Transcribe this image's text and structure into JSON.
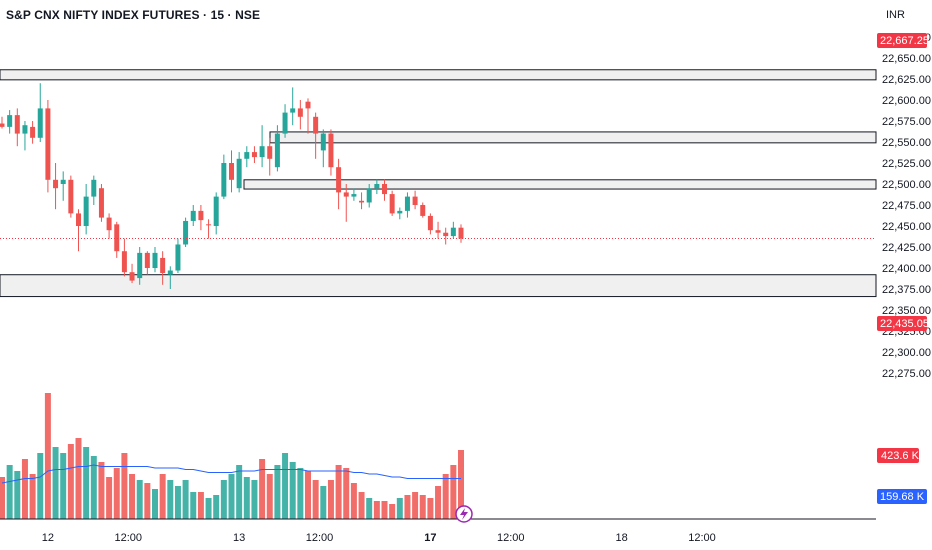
{
  "header": {
    "symbol_title": "S&P CNX NIFTY INDEX FUTURES · 15 · NSE",
    "currency": "INR"
  },
  "colors": {
    "up": "#26a69a",
    "down": "#ef5350",
    "vol_up": "#26a69a",
    "vol_down": "#ef5350",
    "ma_line": "#2962ff",
    "zone_fill": "#f0f0f0",
    "zone_border": "#131722",
    "grid": "#f0f3fa",
    "price_tag": "#f23645",
    "volume_ma_tag": "#2962ff"
  },
  "tags": {
    "top_price": "22,667.25",
    "last_price": "22,435.05",
    "volume_last": "423.6 K",
    "volume_ma": "159.68 K"
  },
  "chart_data": {
    "type": "candlestick",
    "interval": "15",
    "y_axis": {
      "ticks": [
        "22,675.00",
        "22,650.00",
        "22,625.00",
        "22,600.00",
        "22,575.00",
        "22,550.00",
        "22,525.00",
        "22,500.00",
        "22,475.00",
        "22,450.00",
        "22,425.00",
        "22,400.00",
        "22,375.00",
        "22,350.00",
        "22,325.00",
        "22,300.00",
        "22,275.00"
      ],
      "range": [
        22272,
        22680
      ]
    },
    "x_axis": {
      "labels": [
        "12",
        "12:00",
        "13",
        "12:00",
        "17",
        "12:00",
        "18",
        "12:00"
      ],
      "label_bar_index": [
        6,
        16.5,
        31,
        41.5,
        56,
        66.5,
        81,
        91.5
      ]
    },
    "candles": [
      [
        22572,
        22580,
        22566,
        22568
      ],
      [
        22568,
        22588,
        22560,
        22582
      ],
      [
        22582,
        22590,
        22545,
        22560
      ],
      [
        22560,
        22575,
        22540,
        22570
      ],
      [
        22568,
        22575,
        22548,
        22555
      ],
      [
        22555,
        22620,
        22550,
        22590
      ],
      [
        22590,
        22600,
        22490,
        22505
      ],
      [
        22505,
        22525,
        22470,
        22495
      ],
      [
        22500,
        22515,
        22480,
        22505
      ],
      [
        22505,
        22510,
        22460,
        22465
      ],
      [
        22465,
        22470,
        22420,
        22450
      ],
      [
        22450,
        22500,
        22440,
        22485
      ],
      [
        22485,
        22510,
        22475,
        22505
      ],
      [
        22495,
        22500,
        22455,
        22460
      ],
      [
        22460,
        22465,
        22435,
        22445
      ],
      [
        22452,
        22455,
        22412,
        22420
      ],
      [
        22420,
        22435,
        22390,
        22395
      ],
      [
        22395,
        22405,
        22382,
        22385
      ],
      [
        22388,
        22425,
        22380,
        22418
      ],
      [
        22418,
        22420,
        22392,
        22400
      ],
      [
        22400,
        22425,
        22395,
        22418
      ],
      [
        22412,
        22420,
        22380,
        22394
      ],
      [
        22392,
        22402,
        22375,
        22397
      ],
      [
        22397,
        22435,
        22394,
        22428
      ],
      [
        22428,
        22460,
        22425,
        22456
      ],
      [
        22456,
        22475,
        22450,
        22468
      ],
      [
        22468,
        22475,
        22445,
        22457
      ],
      [
        22452,
        22458,
        22435,
        22451
      ],
      [
        22450,
        22490,
        22440,
        22485
      ],
      [
        22485,
        22535,
        22482,
        22525
      ],
      [
        22525,
        22540,
        22490,
        22505
      ],
      [
        22495,
        22538,
        22490,
        22530
      ],
      [
        22530,
        22545,
        22520,
        22538
      ],
      [
        22538,
        22545,
        22525,
        22532
      ],
      [
        22532,
        22570,
        22520,
        22545
      ],
      [
        22545,
        22555,
        22510,
        22530
      ],
      [
        22520,
        22570,
        22515,
        22560
      ],
      [
        22560,
        22595,
        22555,
        22585
      ],
      [
        22585,
        22615,
        22570,
        22590
      ],
      [
        22590,
        22600,
        22565,
        22580
      ],
      [
        22598,
        22602,
        22560,
        22590
      ],
      [
        22580,
        22585,
        22530,
        22560
      ],
      [
        22540,
        22565,
        22520,
        22560
      ],
      [
        22560,
        22565,
        22510,
        22520
      ],
      [
        22520,
        22530,
        22470,
        22490
      ],
      [
        22490,
        22500,
        22455,
        22485
      ],
      [
        22485,
        22495,
        22480,
        22488
      ],
      [
        22480,
        22490,
        22470,
        22478
      ],
      [
        22478,
        22500,
        22472,
        22495
      ],
      [
        22495,
        22505,
        22488,
        22500
      ],
      [
        22500,
        22505,
        22480,
        22488
      ],
      [
        22488,
        22492,
        22462,
        22465
      ],
      [
        22465,
        22472,
        22458,
        22468
      ],
      [
        22468,
        22490,
        22460,
        22485
      ],
      [
        22485,
        22492,
        22470,
        22475
      ],
      [
        22475,
        22478,
        22460,
        22462
      ],
      [
        22462,
        22465,
        22440,
        22445
      ],
      [
        22445,
        22455,
        22435,
        22442
      ],
      [
        22442,
        22448,
        22428,
        22438
      ],
      [
        22438,
        22455,
        22435,
        22448
      ],
      [
        22448,
        22452,
        22430,
        22435
      ]
    ],
    "volume": [
      [
        28,
        "d"
      ],
      [
        36,
        "u"
      ],
      [
        32,
        "u"
      ],
      [
        40,
        "d"
      ],
      [
        30,
        "d"
      ],
      [
        44,
        "u"
      ],
      [
        84,
        "d"
      ],
      [
        48,
        "u"
      ],
      [
        44,
        "u"
      ],
      [
        50,
        "d"
      ],
      [
        54,
        "d"
      ],
      [
        48,
        "u"
      ],
      [
        42,
        "u"
      ],
      [
        38,
        "d"
      ],
      [
        28,
        "d"
      ],
      [
        34,
        "d"
      ],
      [
        44,
        "d"
      ],
      [
        30,
        "d"
      ],
      [
        26,
        "u"
      ],
      [
        24,
        "d"
      ],
      [
        20,
        "u"
      ],
      [
        30,
        "d"
      ],
      [
        26,
        "u"
      ],
      [
        22,
        "u"
      ],
      [
        26,
        "u"
      ],
      [
        18,
        "u"
      ],
      [
        18,
        "d"
      ],
      [
        14,
        "u"
      ],
      [
        16,
        "u"
      ],
      [
        26,
        "u"
      ],
      [
        30,
        "u"
      ],
      [
        36,
        "u"
      ],
      [
        28,
        "u"
      ],
      [
        26,
        "u"
      ],
      [
        40,
        "d"
      ],
      [
        30,
        "d"
      ],
      [
        36,
        "u"
      ],
      [
        44,
        "u"
      ],
      [
        38,
        "u"
      ],
      [
        34,
        "u"
      ],
      [
        32,
        "d"
      ],
      [
        26,
        "d"
      ],
      [
        22,
        "u"
      ],
      [
        26,
        "d"
      ],
      [
        36,
        "d"
      ],
      [
        34,
        "d"
      ],
      [
        24,
        "d"
      ],
      [
        18,
        "d"
      ],
      [
        14,
        "u"
      ],
      [
        12,
        "d"
      ],
      [
        12,
        "d"
      ],
      [
        10,
        "d"
      ],
      [
        14,
        "u"
      ],
      [
        16,
        "d"
      ],
      [
        18,
        "d"
      ],
      [
        16,
        "d"
      ],
      [
        14,
        "d"
      ],
      [
        22,
        "d"
      ],
      [
        30,
        "d"
      ],
      [
        36,
        "d"
      ],
      [
        46,
        "d"
      ]
    ],
    "volume_ma": [
      24,
      25,
      26,
      27,
      27,
      28,
      32,
      33,
      33,
      34,
      35,
      35,
      36,
      35,
      35,
      35,
      35,
      35,
      35,
      35,
      34,
      34,
      34,
      34,
      33,
      33,
      32,
      31,
      31,
      31,
      31,
      32,
      32,
      32,
      33,
      33,
      33,
      33,
      33,
      33,
      32,
      32,
      32,
      32,
      32,
      32,
      31,
      31,
      30,
      30,
      29,
      28,
      28,
      27,
      27,
      27,
      27,
      27,
      27,
      27,
      27
    ],
    "zones": [
      {
        "low": 22624,
        "high": 22636
      },
      {
        "low": 22549,
        "high": 22562
      },
      {
        "low": 22494,
        "high": 22505
      },
      {
        "low": 22366,
        "high": 22392
      }
    ],
    "volume_scale_max": 90
  }
}
